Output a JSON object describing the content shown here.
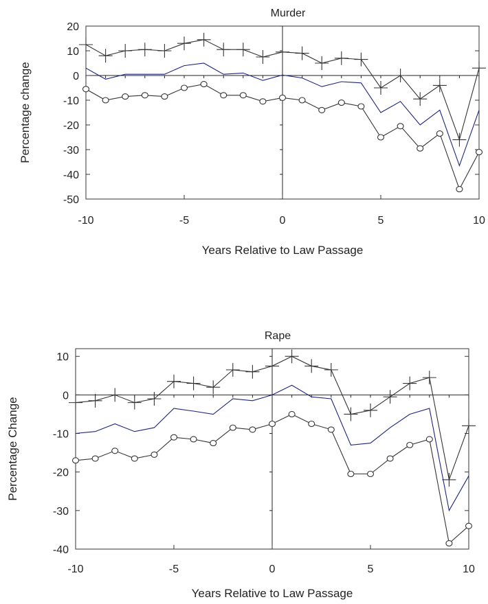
{
  "chart_data": [
    {
      "type": "line",
      "title": "Murder",
      "xlabel": "Years Relative to Law Passage",
      "ylabel": "Percentage change",
      "xlim": [
        -10,
        10
      ],
      "ylim": [
        -50,
        20
      ],
      "xticks": [
        -10,
        -5,
        0,
        5,
        10
      ],
      "yticks": [
        20,
        10,
        0,
        -10,
        -20,
        -30,
        -40,
        -50
      ],
      "x": [
        -10,
        -9,
        -8,
        -7,
        -6,
        -5,
        -4,
        -3,
        -2,
        -1,
        0,
        1,
        2,
        3,
        4,
        5,
        6,
        7,
        8,
        9,
        10
      ],
      "series": [
        {
          "marker": "plus",
          "color": "#333333",
          "values": [
            12.5,
            8,
            10,
            10.5,
            10,
            13,
            14.5,
            10.5,
            10.5,
            7.5,
            9.5,
            9,
            5,
            7,
            6.5,
            -5,
            0,
            -9.5,
            -4,
            -26,
            3
          ]
        },
        {
          "marker": "none",
          "color": "#1a237e",
          "values": [
            3,
            -1.5,
            0.5,
            0.5,
            0.5,
            4,
            5,
            0.5,
            1,
            -2,
            0.2,
            -1,
            -4.5,
            -2.5,
            -3,
            -15,
            -10.5,
            -20,
            -14,
            -36.5,
            -14
          ]
        },
        {
          "marker": "circle",
          "color": "#333333",
          "values": [
            -5.5,
            -10,
            -8.5,
            -8,
            -8.5,
            -5,
            -3.5,
            -8,
            -8,
            -10.5,
            -9,
            -10,
            -14,
            -11,
            -12.5,
            -25,
            -20.5,
            -29.5,
            -23.5,
            -46,
            -31
          ]
        }
      ]
    },
    {
      "type": "line",
      "title": "Rape",
      "xlabel": "Years Relative to Law Passage",
      "ylabel": "Percentage Change",
      "xlim": [
        -10,
        10
      ],
      "ylim": [
        -40,
        12
      ],
      "xticks": [
        -10,
        -5,
        0,
        5,
        10
      ],
      "yticks": [
        10,
        0,
        -10,
        -20,
        -30,
        -40
      ],
      "x": [
        -10,
        -9,
        -8,
        -7,
        -6,
        -5,
        -4,
        -3,
        -2,
        -1,
        0,
        1,
        2,
        3,
        4,
        5,
        6,
        7,
        8,
        9,
        10
      ],
      "series": [
        {
          "marker": "plus",
          "color": "#333333",
          "values": [
            -2,
            -1.5,
            0,
            -2,
            -1,
            3.5,
            3,
            2,
            6.5,
            6,
            7.5,
            10,
            7.5,
            6.5,
            -5,
            -4,
            -0.5,
            3,
            4.5,
            -22,
            -8
          ]
        },
        {
          "marker": "none",
          "color": "#1a237e",
          "values": [
            -10,
            -9.5,
            -7.5,
            -9.5,
            -8.5,
            -3.5,
            -4.2,
            -5,
            -1,
            -1.5,
            0,
            2.5,
            -0.5,
            -1,
            -13,
            -12.5,
            -8.5,
            -5,
            -3.5,
            -30,
            -21
          ]
        },
        {
          "marker": "circle",
          "color": "#333333",
          "values": [
            -17,
            -16.5,
            -14.5,
            -16.5,
            -15.5,
            -11,
            -11.5,
            -12.5,
            -8.5,
            -9,
            -7.5,
            -5,
            -7.5,
            -9,
            -20.5,
            -20.5,
            -16.5,
            -13,
            -11.5,
            -38.5,
            -34
          ]
        }
      ]
    }
  ]
}
